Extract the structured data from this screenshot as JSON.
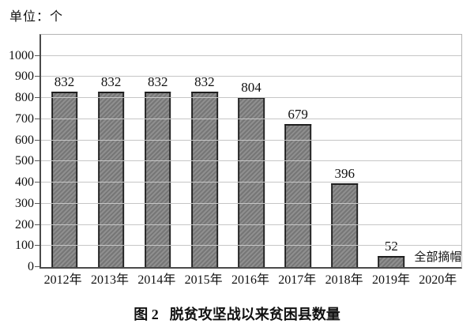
{
  "chart_data": {
    "type": "bar",
    "title": "图 2　脱贫攻坚战以来贫困县数量",
    "unit_label": "单位：个",
    "categories": [
      "2012年",
      "2013年",
      "2014年",
      "2015年",
      "2016年",
      "2017年",
      "2018年",
      "2019年",
      "2020年"
    ],
    "values": [
      832,
      832,
      832,
      832,
      804,
      679,
      396,
      52,
      0
    ],
    "bar_value_labels": [
      "832",
      "832",
      "832",
      "832",
      "804",
      "679",
      "396",
      "52",
      ""
    ],
    "annotations": [
      {
        "category_index": 8,
        "category": "2020年",
        "text": "全部摘帽"
      }
    ],
    "ylim": [
      0,
      1100
    ],
    "yticks": [
      0,
      100,
      200,
      300,
      400,
      500,
      600,
      700,
      800,
      900,
      1000
    ],
    "grid": true,
    "legend": "none",
    "colors": {
      "bar_fill_dark": "#767676",
      "bar_fill_light": "#8f8f8f",
      "bar_border": "#1f1f1f",
      "gridline": "#c6c6c6",
      "axis": "#4a4a4a",
      "frame": "#b5b5b5",
      "text": "#111111"
    },
    "bar_hatch": "diagonal"
  },
  "caption": {
    "figure_label": "图 2",
    "title": "脱贫攻坚战以来贫困县数量"
  }
}
